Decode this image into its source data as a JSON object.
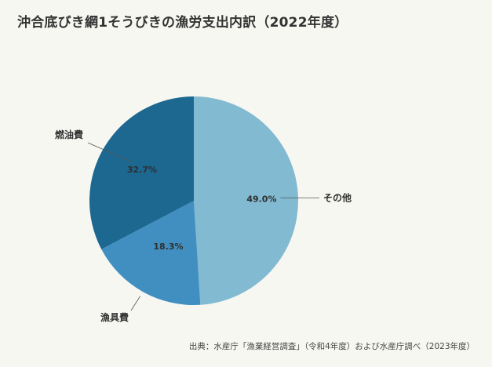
{
  "title": "沖合底びき網1そうびきの漁労支出内訳（2022年度）",
  "source": "出典：水産庁「漁業経営調査」（令和4年度）および水産庁調べ（2023年度）",
  "chart_data": {
    "type": "pie",
    "title": "沖合底びき網1そうびきの漁労支出内訳（2022年度）",
    "slices": [
      {
        "label": "その他",
        "value": 49.0,
        "display": "49.0%",
        "color": "#82bad2"
      },
      {
        "label": "漁具費",
        "value": 18.3,
        "display": "18.3%",
        "color": "#418fc1"
      },
      {
        "label": "燃油費",
        "value": 32.7,
        "display": "32.7%",
        "color": "#1c6890"
      }
    ],
    "start": "12 o'clock",
    "direction": "clockwise",
    "legend": "none"
  }
}
